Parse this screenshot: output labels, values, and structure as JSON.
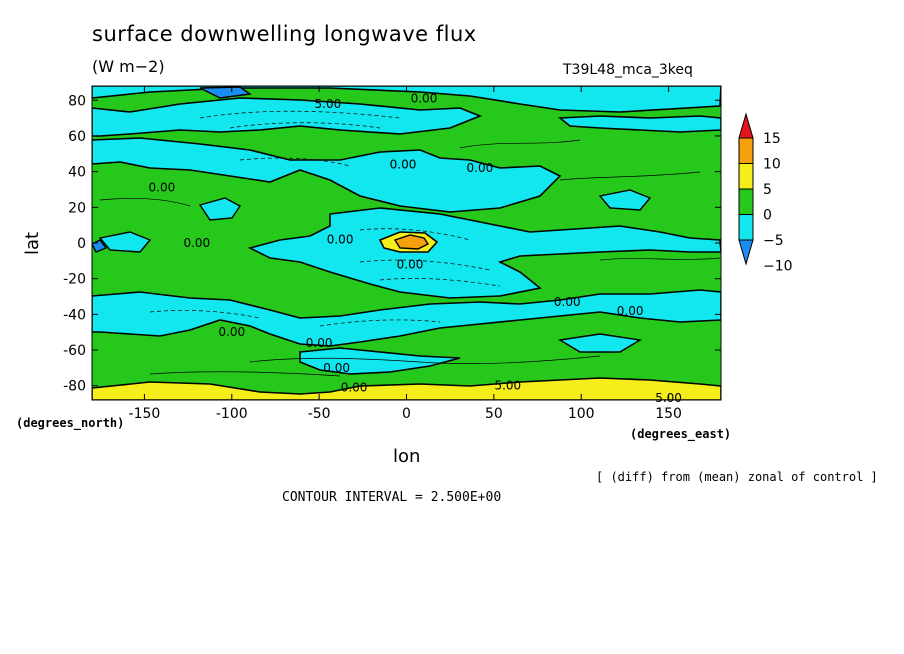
{
  "chart_data": {
    "type": "heatmap",
    "title": "surface downwelling longwave flux",
    "units": "(W m−2)",
    "run_label": "T39L48_mca_3keq",
    "xlabel": "lon",
    "ylabel": "lat",
    "x_units_label": "(degrees_east)",
    "y_units_label": "(degrees_north)",
    "x_ticks": [
      "-150",
      "-100",
      "-50",
      "0",
      "50",
      "100",
      "150"
    ],
    "x_tick_values": [
      -150,
      -100,
      -50,
      0,
      50,
      100,
      150
    ],
    "y_ticks": [
      "80",
      "60",
      "40",
      "20",
      "0",
      "-20",
      "-40",
      "-60",
      "-80"
    ],
    "y_tick_values": [
      80,
      60,
      40,
      20,
      0,
      -20,
      -40,
      -60,
      -80
    ],
    "xlim": [
      -180,
      180
    ],
    "ylim": [
      -88,
      88
    ],
    "note": "[ (diff) from (mean) zonal of control ]",
    "contour_interval_text": "CONTOUR INTERVAL = 2.500E+00",
    "contour_labels": [
      {
        "text": "5.00",
        "lon": -45,
        "lat": 78
      },
      {
        "text": "0.00",
        "lon": 10,
        "lat": 81
      },
      {
        "text": "0.00",
        "lon": -140,
        "lat": 31
      },
      {
        "text": "0.00",
        "lon": -2,
        "lat": 44
      },
      {
        "text": "0.00",
        "lon": 42,
        "lat": 42
      },
      {
        "text": "0.00",
        "lon": -120,
        "lat": 0
      },
      {
        "text": "0.00",
        "lon": -38,
        "lat": 2
      },
      {
        "text": "0.00",
        "lon": 2,
        "lat": -12
      },
      {
        "text": "0.00",
        "lon": 92,
        "lat": -33
      },
      {
        "text": "0.00",
        "lon": 128,
        "lat": -38
      },
      {
        "text": "0.00",
        "lon": -100,
        "lat": -50
      },
      {
        "text": "0.00",
        "lon": -50,
        "lat": -56
      },
      {
        "text": "0.00",
        "lon": -40,
        "lat": -70
      },
      {
        "text": "0.00",
        "lon": -30,
        "lat": -81
      },
      {
        "text": "5.00",
        "lon": 58,
        "lat": -80
      },
      {
        "text": "5.00",
        "lon": 150,
        "lat": -87
      }
    ],
    "colorbar": {
      "levels": [
        "15",
        "10",
        "5",
        "0",
        "-5",
        "-10"
      ],
      "colors": [
        "#e8141c",
        "#f5a00c",
        "#f5ee1a",
        "#26c81c",
        "#12e6ee",
        "#1a8ef0"
      ]
    },
    "shading_colors": {
      "positive_0_5": "#26c81c",
      "negative_0_5": "#12e6ee",
      "negative_5_10": "#1a8ef0",
      "positive_5_10": "#f5ee1a",
      "positive_10_15": "#f5a00c"
    }
  }
}
